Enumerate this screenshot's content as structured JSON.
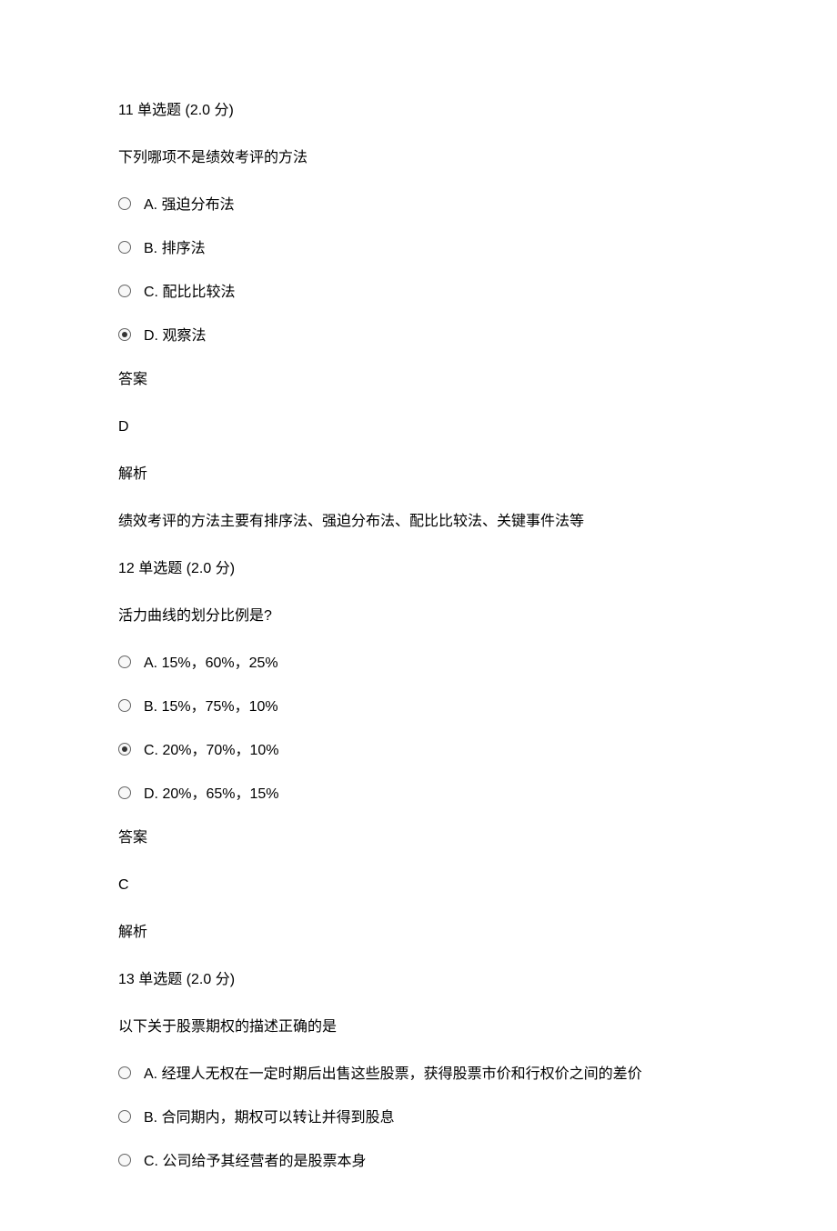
{
  "text_color": "#000000",
  "background_color": "#ffffff",
  "base_fontsize": 16,
  "font_family": "Microsoft YaHei",
  "questions": [
    {
      "header": "11 单选题 (2.0 分)",
      "prompt": "下列哪项不是绩效考评的方法",
      "options": [
        {
          "label": "A. 强迫分布法",
          "selected": false
        },
        {
          "label": "B. 排序法",
          "selected": false
        },
        {
          "label": "C. 配比比较法",
          "selected": false
        },
        {
          "label": "D. 观察法",
          "selected": true
        }
      ],
      "answer_label": "答案",
      "answer_value": "D",
      "analysis_label": "解析",
      "analysis_text": "绩效考评的方法主要有排序法、强迫分布法、配比比较法、关键事件法等"
    },
    {
      "header": "12 单选题 (2.0 分)",
      "prompt": "活力曲线的划分比例是?",
      "options": [
        {
          "label": "A. 15%，60%，25%",
          "selected": false
        },
        {
          "label": "B. 15%，75%，10%",
          "selected": false
        },
        {
          "label": "C. 20%，70%，10%",
          "selected": true
        },
        {
          "label": "D. 20%，65%，15%",
          "selected": false
        }
      ],
      "answer_label": "答案",
      "answer_value": "C",
      "analysis_label": "解析",
      "analysis_text": ""
    },
    {
      "header": "13 单选题 (2.0 分)",
      "prompt": "以下关于股票期权的描述正确的是",
      "options": [
        {
          "label": "A. 经理人无权在一定时期后出售这些股票，获得股票市价和行权价之间的差价",
          "selected": false
        },
        {
          "label": "B. 合同期内，期权可以转让并得到股息",
          "selected": false
        },
        {
          "label": "C. 公司给予其经营者的是股票本身",
          "selected": false
        }
      ],
      "answer_label": "",
      "answer_value": "",
      "analysis_label": "",
      "analysis_text": ""
    }
  ]
}
